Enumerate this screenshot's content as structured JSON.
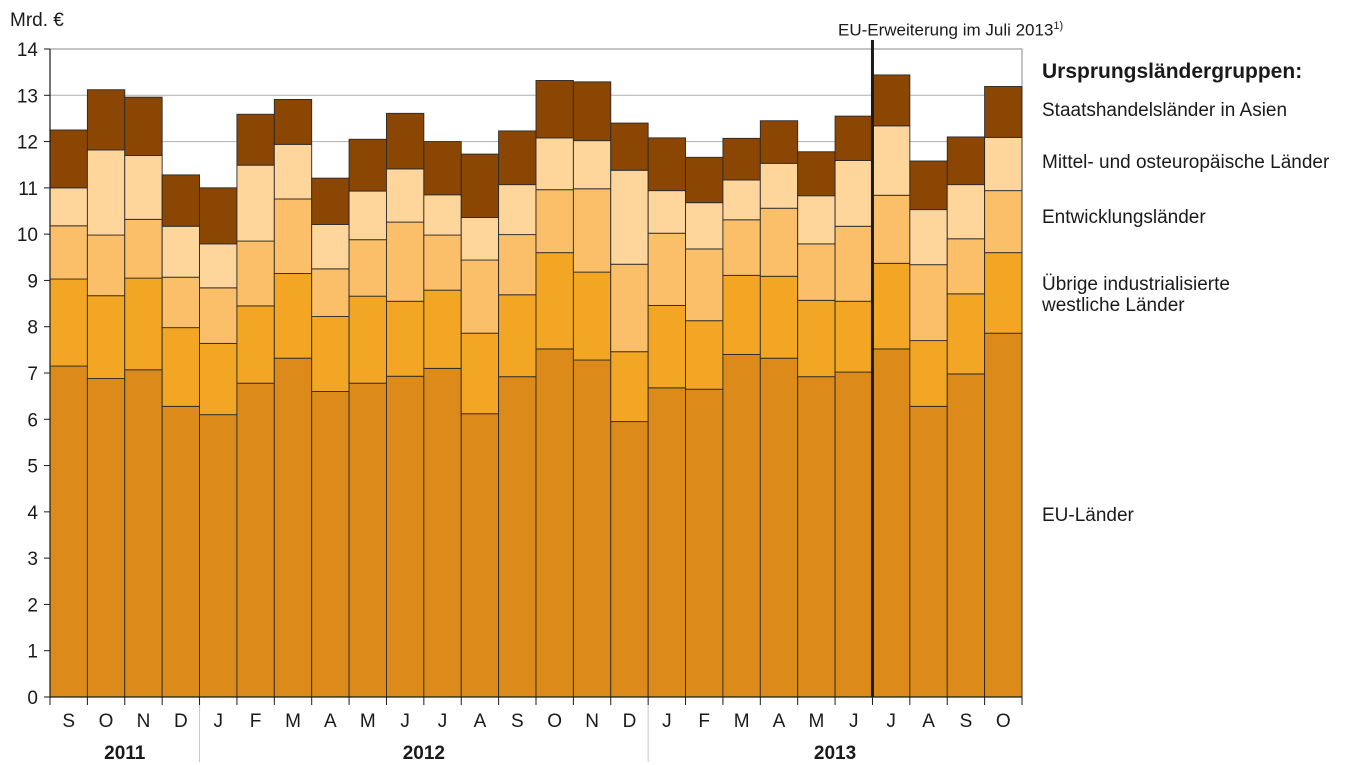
{
  "chart_data": {
    "type": "bar",
    "stacked": true,
    "ylabel": "Mrd. €",
    "ylim": [
      0,
      14
    ],
    "yticks": [
      0,
      1,
      2,
      3,
      4,
      5,
      6,
      7,
      8,
      9,
      10,
      11,
      12,
      13,
      14
    ],
    "grid": true,
    "categories": [
      "S",
      "O",
      "N",
      "D",
      "J",
      "F",
      "M",
      "A",
      "M",
      "J",
      "J",
      "A",
      "S",
      "O",
      "N",
      "D",
      "J",
      "F",
      "M",
      "A",
      "M",
      "J",
      "J",
      "A",
      "S",
      "O"
    ],
    "year_groups": [
      {
        "label": "2011",
        "count": 4
      },
      {
        "label": "2012",
        "count": 12
      },
      {
        "label": "2013",
        "count": 10
      }
    ],
    "series": [
      {
        "name": "EU-Länder",
        "color": "#dc8a1a",
        "values": [
          7.15,
          6.88,
          7.07,
          6.28,
          6.1,
          6.78,
          7.32,
          6.6,
          6.78,
          6.93,
          7.1,
          6.12,
          6.92,
          7.52,
          7.28,
          5.95,
          6.68,
          6.65,
          7.4,
          7.32,
          6.92,
          7.02,
          7.52,
          6.28,
          6.98,
          7.86
        ]
      },
      {
        "name": "Übrige industrialisierte westliche Länder",
        "color": "#f2a623",
        "values": [
          1.88,
          1.79,
          1.98,
          1.7,
          1.54,
          1.67,
          1.83,
          1.62,
          1.88,
          1.62,
          1.69,
          1.74,
          1.77,
          2.08,
          1.9,
          1.51,
          1.78,
          1.48,
          1.71,
          1.77,
          1.65,
          1.53,
          1.85,
          1.42,
          1.73,
          1.74
        ]
      },
      {
        "name": "Entwicklungsländer",
        "color": "#fcbf69",
        "values": [
          1.15,
          1.31,
          1.27,
          1.09,
          1.2,
          1.4,
          1.61,
          1.03,
          1.22,
          1.71,
          1.19,
          1.58,
          1.3,
          1.36,
          1.8,
          1.89,
          1.56,
          1.55,
          1.2,
          1.47,
          1.22,
          1.62,
          1.47,
          1.64,
          1.19,
          1.34
        ]
      },
      {
        "name": "Mittel- und osteuropäische Länder",
        "color": "#fed59a",
        "values": [
          0.82,
          1.84,
          1.38,
          1.1,
          0.95,
          1.64,
          1.18,
          0.96,
          1.05,
          1.15,
          0.87,
          0.92,
          1.08,
          1.12,
          1.04,
          2.03,
          0.92,
          1.0,
          0.86,
          0.97,
          1.04,
          1.42,
          1.5,
          1.19,
          1.17,
          1.15
        ]
      },
      {
        "name": "Staatshandelsländer in Asien",
        "color": "#8b4603",
        "values": [
          1.25,
          1.3,
          1.26,
          1.11,
          1.21,
          1.1,
          0.97,
          1.0,
          1.12,
          1.2,
          1.15,
          1.37,
          1.16,
          1.24,
          1.27,
          1.02,
          1.14,
          0.98,
          0.9,
          0.92,
          0.95,
          0.96,
          1.1,
          1.05,
          1.03,
          1.1
        ]
      }
    ],
    "annotation": {
      "text": "EU-Erweiterung im Juli 2013",
      "sup": "1)",
      "after_index": 21
    },
    "legend_title": "Ursprungsländergruppen:",
    "legend_placement": "right"
  }
}
